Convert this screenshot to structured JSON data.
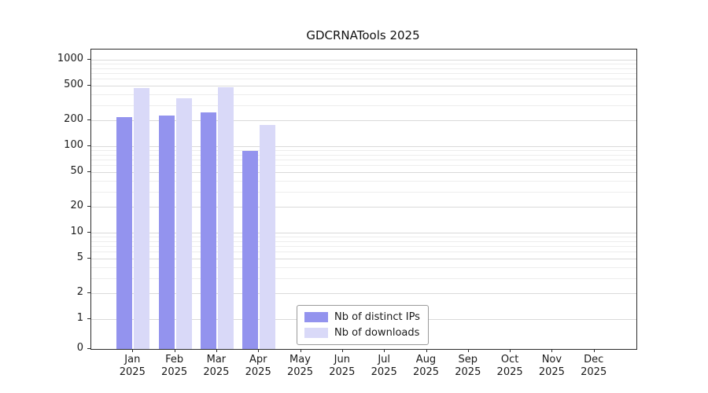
{
  "chart_data": {
    "type": "bar",
    "title": "GDCRNATools 2025",
    "scale": "log",
    "categories": [
      "Jan",
      "Feb",
      "Mar",
      "Apr",
      "May",
      "Jun",
      "Jul",
      "Aug",
      "Sep",
      "Oct",
      "Nov",
      "Dec"
    ],
    "year": "2025",
    "series": [
      {
        "name": "Nb of distinct IPs",
        "color": "#9393ee",
        "values": [
          215,
          225,
          245,
          88,
          0,
          0,
          0,
          0,
          0,
          0,
          0,
          0
        ]
      },
      {
        "name": "Nb of downloads",
        "color": "#d9d9f8",
        "values": [
          470,
          360,
          480,
          175,
          0,
          0,
          0,
          0,
          0,
          0,
          0,
          0
        ]
      }
    ],
    "yticks": [
      0,
      1,
      2,
      5,
      10,
      20,
      50,
      100,
      200,
      500,
      1000
    ],
    "gridlines": [
      1,
      2,
      3,
      4,
      5,
      6,
      7,
      8,
      9,
      10,
      20,
      30,
      40,
      50,
      60,
      70,
      80,
      90,
      100,
      200,
      300,
      400,
      500,
      600,
      700,
      800,
      900,
      1000
    ],
    "ylim": [
      0,
      1300
    ],
    "grid": "horizontal",
    "legend_position": "lower center"
  }
}
